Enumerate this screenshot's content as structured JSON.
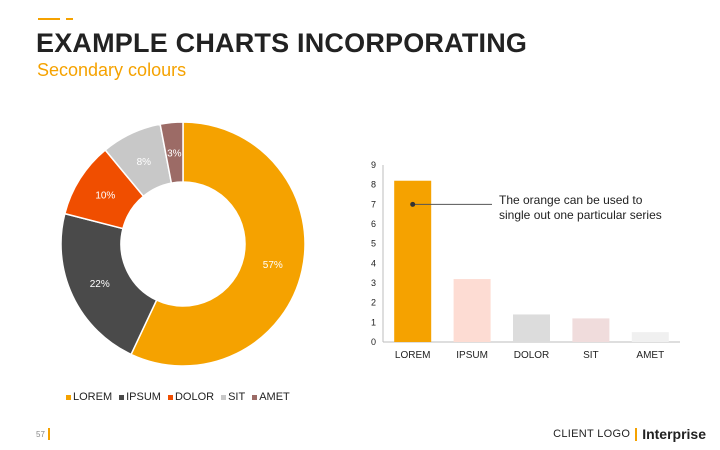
{
  "slide": {
    "title": "EXAMPLE CHARTS INCORPORATING",
    "subtitle": "Secondary colours",
    "page_number": "57",
    "client_logo": "CLIENT LOGO",
    "brand_logo": "Interprise"
  },
  "colors": {
    "accent": "#f5a200",
    "lorem": "#f5a200",
    "ipsum": "#4a4a4a",
    "dolor": "#f04e00",
    "sit": "#c8c8c8",
    "amet": "#9c6b66"
  },
  "chart_data": [
    {
      "type": "pie",
      "variant": "donut",
      "categories": [
        "LOREM",
        "IPSUM",
        "DOLOR",
        "SIT",
        "AMET"
      ],
      "values": [
        57,
        22,
        10,
        8,
        3
      ],
      "labels": [
        "57%",
        "22%",
        "10%",
        "8%",
        "3%"
      ],
      "colors": [
        "#f5a200",
        "#4a4a4a",
        "#f04e00",
        "#c8c8c8",
        "#9c6b66"
      ],
      "legend": "bottom"
    },
    {
      "type": "bar",
      "categories": [
        "LOREM",
        "IPSUM",
        "DOLOR",
        "SIT",
        "AMET"
      ],
      "values": [
        8.2,
        3.2,
        1.4,
        1.2,
        0.5
      ],
      "colors": [
        "#f5a200",
        "#fddcd3",
        "#dcdcdc",
        "#f0dcdc",
        "#f0f0f0"
      ],
      "ylim": [
        0,
        9
      ],
      "yticks": [
        "0",
        "1",
        "2",
        "3",
        "4",
        "5",
        "6",
        "7",
        "8",
        "9"
      ],
      "grid": false,
      "annotation": {
        "line1": "The orange can be used to",
        "line2": "single out one particular series",
        "target": "LOREM",
        "target_value": 7
      }
    }
  ]
}
